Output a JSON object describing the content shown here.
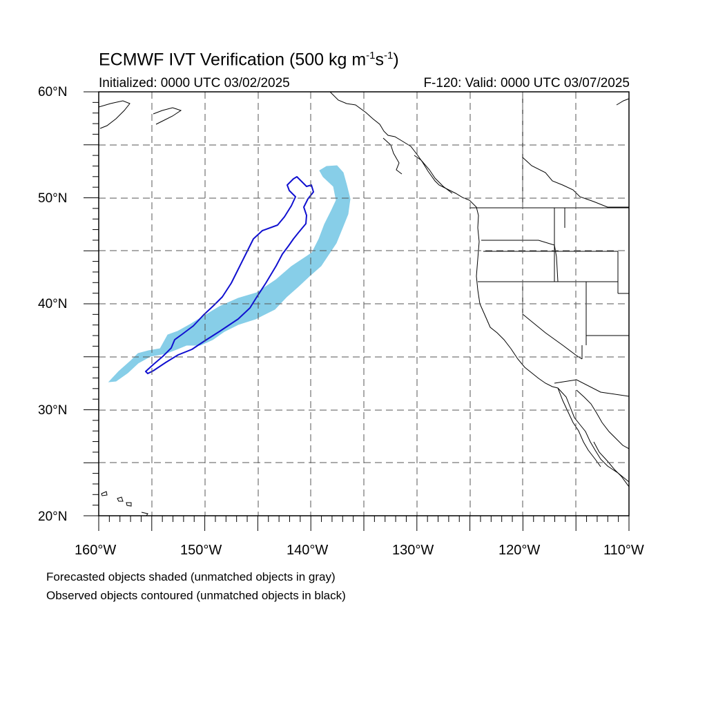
{
  "title": {
    "main": "ECMWF IVT Verification (500 kg m",
    "exp1": "-1",
    "mid": "s",
    "exp2": "-1",
    "end": ")"
  },
  "subtitle": {
    "initialized": "Initialized: 0000 UTC 03/02/2025",
    "valid": "F-120: Valid: 0000 UTC 03/07/2025"
  },
  "lat_labels": [
    "60°N",
    "50°N",
    "40°N",
    "30°N",
    "20°N"
  ],
  "lon_labels": [
    "160°W",
    "150°W",
    "140°W",
    "130°W",
    "120°W",
    "110°W"
  ],
  "legend": {
    "line1": "Forecasted objects shaded (unmatched objects in gray)",
    "line2": "Observed objects contoured (unmatched objects in black)"
  },
  "colors": {
    "forecast_fill": "#87cee8",
    "observed_contour": "#1010d0",
    "coast": "#000000"
  }
}
